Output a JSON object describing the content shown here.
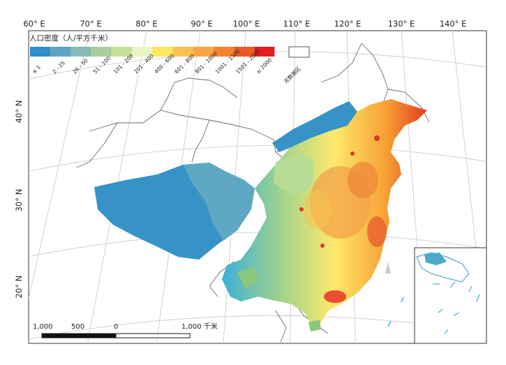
{
  "longitude_labels": [
    "60° E",
    "70° E",
    "80° E",
    "90° E",
    "100° E",
    "110° E",
    "120° E",
    "130° E",
    "140° E"
  ],
  "latitude_labels": [
    "40° N",
    "30° N",
    "20° N"
  ],
  "legend": {
    "title": "人口密度（人/平方千米）",
    "classes": [
      {
        "label": "≤ 1",
        "color": "#2f8fcb"
      },
      {
        "label": "2 - 25",
        "color": "#5fa3c2"
      },
      {
        "label": "26 - 50",
        "color": "#86bab3"
      },
      {
        "label": "51 - 100",
        "color": "#a9cd9c"
      },
      {
        "label": "101 - 200",
        "color": "#c7e09a"
      },
      {
        "label": "201 - 400",
        "color": "#e9f5c4"
      },
      {
        "label": "400 - 600",
        "color": "#fce75f"
      },
      {
        "label": "601 - 800",
        "color": "#fbc055"
      },
      {
        "label": "801 - 1000",
        "color": "#f9a447"
      },
      {
        "label": "1001 - 1500",
        "color": "#f4822f"
      },
      {
        "label": "1501 - 2000",
        "color": "#ec5a24"
      },
      {
        "label": "≥ 2000",
        "color": "#e21e1e"
      }
    ],
    "no_data_label": "无数据区",
    "no_data_color": "#ffffff"
  },
  "scale_bar": {
    "ticks": [
      "1,000",
      "500",
      "0",
      "1,000 千米"
    ]
  }
}
